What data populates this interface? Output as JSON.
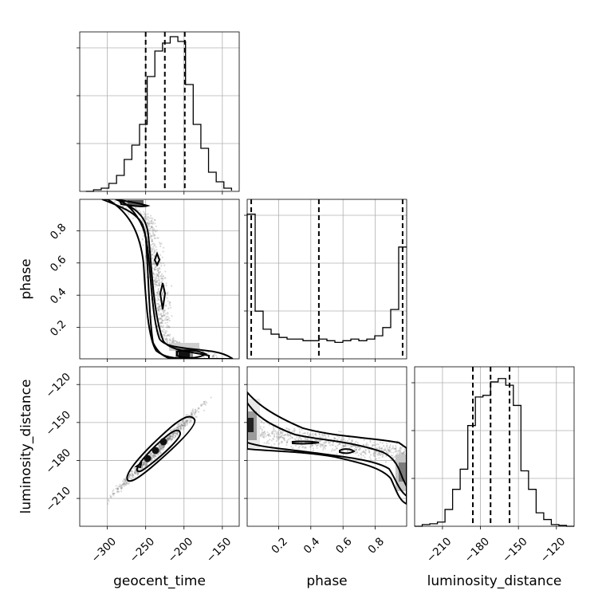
{
  "chart_data": {
    "type": "corner",
    "parameters": [
      "geocent_time",
      "phase",
      "luminosity_distance"
    ],
    "colors": {
      "marks": "#000000",
      "grid": "#b0b0b0",
      "samples": "#7f7f7f"
    },
    "grid": true,
    "ranges": {
      "geocent_time": [
        -336,
        -128
      ],
      "phase": [
        0.005,
        0.995
      ],
      "luminosity_distance": [
        -232,
        -106
      ]
    },
    "ticks": {
      "geocent_time": [
        -300,
        -250,
        -200,
        -150
      ],
      "phase": [
        0.2,
        0.4,
        0.6,
        0.8
      ],
      "luminosity_distance": [
        -210,
        -180,
        -150,
        -120
      ]
    },
    "tick_labels": {
      "geocent_time": [
        "−300",
        "−250",
        "−200",
        "−150"
      ],
      "phase": [
        "0.2",
        "0.4",
        "0.6",
        "0.8"
      ],
      "luminosity_distance": [
        "−210",
        "−180",
        "−150",
        "−120"
      ]
    },
    "histograms": {
      "geocent_time": {
        "bins": [
          -328,
          -318,
          -308,
          -298,
          -288,
          -278,
          -268,
          -258,
          -248,
          -238,
          -228,
          -218,
          -208,
          -198,
          -188,
          -178,
          -168,
          -158,
          -148,
          -138
        ],
        "counts": [
          0.0,
          0.01,
          0.02,
          0.05,
          0.1,
          0.2,
          0.29,
          0.42,
          0.72,
          0.88,
          0.93,
          0.97,
          0.94,
          0.67,
          0.42,
          0.27,
          0.12,
          0.06,
          0.02,
          0.005
        ],
        "quantiles": [
          -250,
          -225,
          -199
        ],
        "ylim": [
          0,
          1.0
        ]
      },
      "phase": {
        "bins": [
          0.005,
          0.0545,
          0.104,
          0.1535,
          0.203,
          0.2525,
          0.302,
          0.3515,
          0.401,
          0.4505,
          0.5,
          0.5495,
          0.599,
          0.6485,
          0.698,
          0.7475,
          0.797,
          0.8465,
          0.896,
          0.9455,
          0.995
        ],
        "counts": [
          0.88,
          0.29,
          0.18,
          0.15,
          0.13,
          0.12,
          0.12,
          0.11,
          0.11,
          0.12,
          0.11,
          0.1,
          0.11,
          0.12,
          0.11,
          0.12,
          0.14,
          0.19,
          0.3,
          0.68
        ],
        "quantiles": [
          0.03,
          0.45,
          0.97
        ],
        "ylim": [
          0,
          0.97
        ]
      },
      "luminosity_distance": {
        "bins": [
          -232,
          -226,
          -220,
          -214,
          -208,
          -202,
          -196,
          -190,
          -184,
          -178,
          -172,
          -166,
          -160,
          -154,
          -148,
          -142,
          -136,
          -130,
          -124,
          -118,
          -112,
          -106
        ],
        "counts": [
          0.0,
          0.01,
          0.015,
          0.025,
          0.1,
          0.22,
          0.34,
          0.6,
          0.77,
          0.78,
          0.86,
          0.88,
          0.84,
          0.72,
          0.33,
          0.22,
          0.08,
          0.04,
          0.01,
          0.005,
          0.0
        ],
        "quantiles": [
          -186,
          -172,
          -157
        ],
        "ylim": [
          0,
          0.95
        ]
      }
    }
  }
}
